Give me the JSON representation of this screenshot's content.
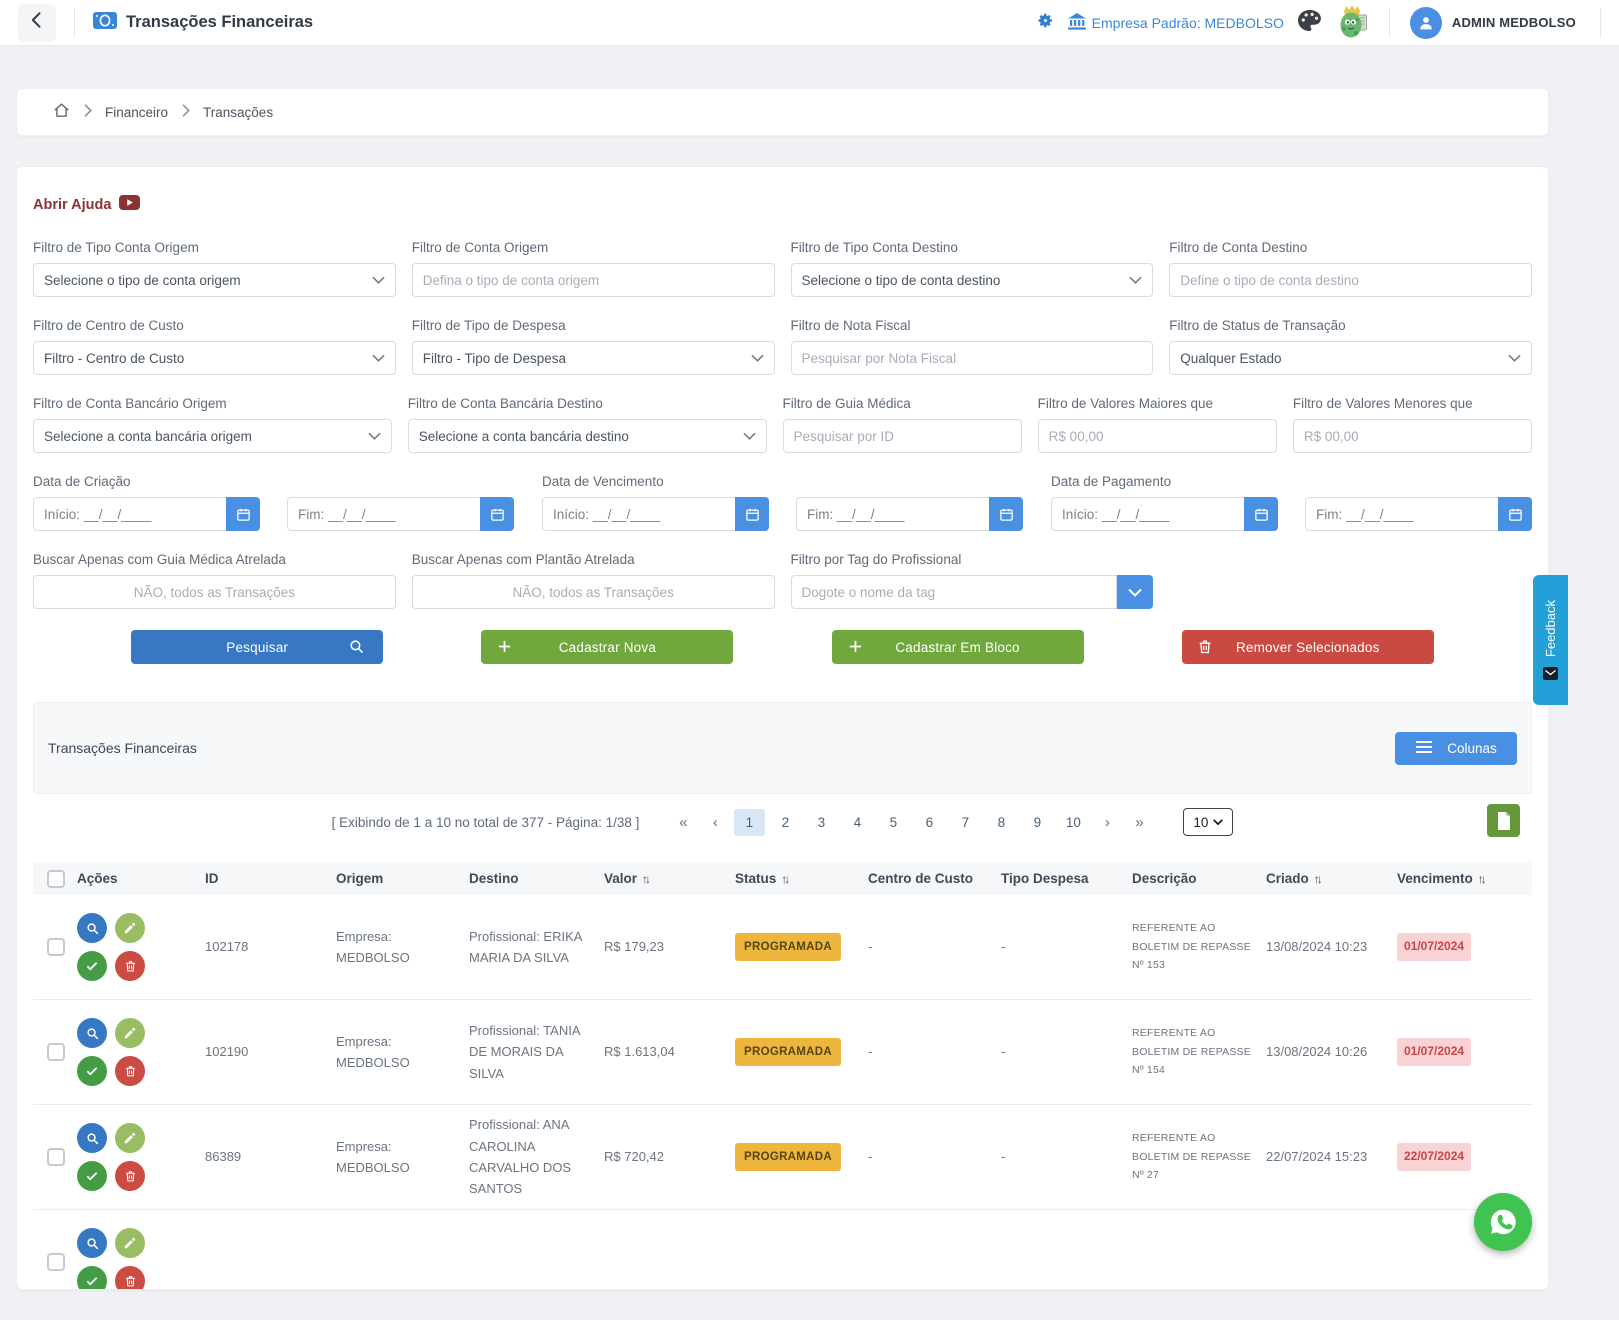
{
  "topbar": {
    "title": "Transações Financeiras",
    "company_link": "Empresa Padrão: MEDBOLSO",
    "user_name": "ADMIN MEDBOLSO"
  },
  "breadcrumb": {
    "items": [
      "Financeiro",
      "Transações"
    ]
  },
  "help_label": "Abrir Ajuda",
  "filters": {
    "tipoContaOrigem": {
      "label": "Filtro de Tipo Conta Origem",
      "value": "Selecione o tipo de conta origem"
    },
    "contaOrigem": {
      "label": "Filtro de Conta Origem",
      "placeholder": "Defina o tipo de conta origem"
    },
    "tipoContaDestino": {
      "label": "Filtro de Tipo Conta Destino",
      "value": "Selecione o tipo de conta destino"
    },
    "contaDestino": {
      "label": "Filtro de Conta Destino",
      "placeholder": "Define o tipo de conta destino"
    },
    "centroCusto": {
      "label": "Filtro de Centro de Custo",
      "value": "Filtro - Centro de Custo"
    },
    "tipoDespesa": {
      "label": "Filtro de Tipo de Despesa",
      "value": "Filtro - Tipo de Despesa"
    },
    "notaFiscal": {
      "label": "Filtro de Nota Fiscal",
      "placeholder": "Pesquisar por Nota Fiscal"
    },
    "statusTransacao": {
      "label": "Filtro de Status de Transação",
      "value": "Qualquer Estado"
    },
    "contaBancariaOrigem": {
      "label": "Filtro de Conta Bancário Origem",
      "value": "Selecione a conta bancária origem"
    },
    "contaBancariaDestino": {
      "label": "Filtro de Conta Bancária Destino",
      "value": "Selecione a conta bancária destino"
    },
    "guiaMedica": {
      "label": "Filtro de Guia Médica",
      "placeholder": "Pesquisar por ID"
    },
    "valoresMaiores": {
      "label": "Filtro de Valores Maiores que",
      "placeholder": "R$ 00,00"
    },
    "valoresMenores": {
      "label": "Filtro de Valores Menores que",
      "placeholder": "R$ 00,00"
    },
    "dataCriacao": {
      "label": "Data de Criação",
      "inicio": "Início: __/__/____",
      "fim": "Fim: __/__/____"
    },
    "dataVencimento": {
      "label": "Data de Vencimento",
      "inicio": "Início: __/__/____",
      "fim": "Fim: __/__/____"
    },
    "dataPagamento": {
      "label": "Data de Pagamento",
      "inicio": "Início: __/__/____",
      "fim": "Fim: __/__/____"
    },
    "guiaAtrelada": {
      "label": "Buscar Apenas com Guia Médica Atrelada",
      "value": "NÃO, todos as Transações"
    },
    "plantaoAtrelada": {
      "label": "Buscar Apenas com Plantão Atrelada",
      "value": "NÃO, todos as Transações"
    },
    "tagProfissional": {
      "label": "Filtro por Tag do Profissional",
      "placeholder": "Dogote o nome da tag"
    }
  },
  "buttons": {
    "pesquisar": "Pesquisar",
    "cadastrarNova": "Cadastrar Nova",
    "cadastrarBloco": "Cadastrar Em Bloco",
    "remover": "Remover Selecionados"
  },
  "section": {
    "title": "Transações Financeiras",
    "colunas": "Colunas"
  },
  "pagination": {
    "summary": "[ Exibindo de 1 a 10 no total de 377 - Página: 1/38 ]",
    "pages": [
      "1",
      "2",
      "3",
      "4",
      "5",
      "6",
      "7",
      "8",
      "9",
      "10"
    ],
    "current": "1",
    "pageSize": "10",
    "first": "«",
    "prev": "‹",
    "next": "›",
    "last": "»"
  },
  "table": {
    "sortGlyph": "↑↓",
    "headers": [
      "Ações",
      "ID",
      "Origem",
      "Destino",
      "Valor",
      "Status",
      "Centro de Custo",
      "Tipo Despesa",
      "Descrição",
      "Criado",
      "Vencimento"
    ],
    "rows": [
      {
        "id": "102178",
        "origem": "Empresa: MEDBOLSO",
        "destino": "Profissional: ERIKA MARIA DA SILVA",
        "valor": "R$ 179,23",
        "status": "PROGRAMADA",
        "centroCusto": "-",
        "tipoDespesa": "-",
        "descricao": "REFERENTE AO BOLETIM DE REPASSE Nº 153",
        "criado": "13/08/2024 10:23",
        "vencimento": "01/07/2024"
      },
      {
        "id": "102190",
        "origem": "Empresa: MEDBOLSO",
        "destino": "Profissional: TANIA DE MORAIS DA SILVA",
        "valor": "R$ 1.613,04",
        "status": "PROGRAMADA",
        "centroCusto": "-",
        "tipoDespesa": "-",
        "descricao": "REFERENTE AO BOLETIM DE REPASSE Nº 154",
        "criado": "13/08/2024 10:26",
        "vencimento": "01/07/2024"
      },
      {
        "id": "86389",
        "origem": "Empresa: MEDBOLSO",
        "destino": "Profissional: ANA CAROLINA CARVALHO DOS SANTOS",
        "valor": "R$ 720,42",
        "status": "PROGRAMADA",
        "centroCusto": "-",
        "tipoDespesa": "-",
        "descricao": "REFERENTE AO BOLETIM DE REPASSE Nº 27",
        "criado": "22/07/2024 15:23",
        "vencimento": "22/07/2024"
      },
      {
        "partial": true
      }
    ]
  },
  "feedback": {
    "label": "Feedback"
  },
  "colors": {
    "accent_blue": "#3878c2",
    "light_blue": "#4a90e2",
    "link_blue": "#3b86d8",
    "button_green": "#70a83d",
    "export_green": "#66973b",
    "button_red": "#c94a42",
    "badge_yellow_bg": "#efb63e",
    "badge_yellow_text": "#554613",
    "badge_pink_bg": "#f8d2d5",
    "badge_pink_text": "#cb4545",
    "help_maroon": "#8a3333",
    "whatsapp_green": "#40c351",
    "feedback_blue": "#24a0d8"
  }
}
